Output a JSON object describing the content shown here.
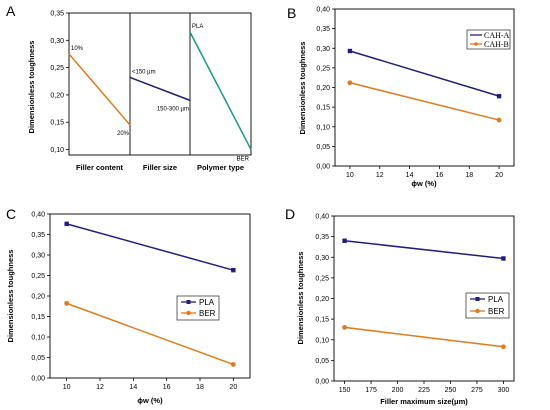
{
  "colors": {
    "blue": "#1f1f7a",
    "orange": "#e07a1f",
    "green": "#1a9a85",
    "axis": "#000000"
  },
  "chart_data": [
    {
      "panel": "A",
      "type": "line",
      "ylabel": "Dimensionless toughness",
      "ylim": [
        0.09,
        0.35
      ],
      "yticks": [
        "0,35",
        "0,30",
        "0,25",
        "0,20",
        "0,15",
        "0,10"
      ],
      "yticks_values": [
        0.35,
        0.3,
        0.25,
        0.2,
        0.15,
        0.1
      ],
      "groups": [
        {
          "xlabel": "Filler content",
          "color_key": "orange",
          "points": [
            {
              "label": "10%",
              "y": 0.275
            },
            {
              "label": "20%",
              "y": 0.145
            }
          ]
        },
        {
          "xlabel": "Filler size",
          "color_key": "blue",
          "points": [
            {
              "label": "<150 µm",
              "y": 0.232
            },
            {
              "label": "150-300 µm",
              "y": 0.19
            }
          ]
        },
        {
          "xlabel": "Polymer type",
          "color_key": "green",
          "points": [
            {
              "label": "PLA",
              "y": 0.315
            },
            {
              "label": "BER",
              "y": 0.1
            }
          ]
        }
      ]
    },
    {
      "panel": "B",
      "type": "line",
      "ylabel": "Dimensionless toughness",
      "xlabel": "ϕw (%)",
      "xlim": [
        9,
        21
      ],
      "xticks": [
        10,
        12,
        14,
        16,
        18,
        20
      ],
      "ylim": [
        0,
        0.4
      ],
      "yticks": [
        "0,00",
        "0,05",
        "0,10",
        "0,15",
        "0,20",
        "0,25",
        "0,30",
        "0,35",
        "0,40"
      ],
      "yticks_values": [
        0,
        0.05,
        0.1,
        0.15,
        0.2,
        0.25,
        0.3,
        0.35,
        0.4
      ],
      "legend_position": "top-right",
      "series": [
        {
          "name": "CAH-A",
          "color_key": "blue",
          "x": [
            10,
            20
          ],
          "y": [
            0.293,
            0.178
          ]
        },
        {
          "name": "CAH-B",
          "color_key": "orange",
          "x": [
            10,
            20
          ],
          "y": [
            0.212,
            0.117
          ]
        }
      ]
    },
    {
      "panel": "C",
      "type": "line",
      "ylabel": "Dimensionless toughness",
      "xlabel": "ϕw (%)",
      "xlim": [
        9,
        21
      ],
      "xticks": [
        10,
        12,
        14,
        16,
        18,
        20
      ],
      "ylim": [
        0,
        0.4
      ],
      "yticks": [
        "0,00",
        "0,05",
        "0,10",
        "0,15",
        "0,20",
        "0,25",
        "0,30",
        "0,35",
        "0,40"
      ],
      "yticks_values": [
        0,
        0.05,
        0.1,
        0.15,
        0.2,
        0.25,
        0.3,
        0.35,
        0.4
      ],
      "legend_position": "middle-right",
      "series": [
        {
          "name": "PLA",
          "color_key": "blue",
          "x": [
            10,
            20
          ],
          "y": [
            0.376,
            0.263
          ]
        },
        {
          "name": "BER",
          "color_key": "orange",
          "x": [
            10,
            20
          ],
          "y": [
            0.182,
            0.033
          ]
        }
      ]
    },
    {
      "panel": "D",
      "type": "line",
      "ylabel": "Dimensionless toughness",
      "xlabel": "Filler maximum size(μm)",
      "xlim": [
        140,
        310
      ],
      "xticks": [
        150,
        175,
        200,
        225,
        250,
        275,
        300
      ],
      "ylim": [
        0,
        0.4
      ],
      "yticks": [
        "0,00",
        "0,05",
        "0,10",
        "0,15",
        "0,20",
        "0,25",
        "0,30",
        "0,35",
        "0,40"
      ],
      "yticks_values": [
        0,
        0.05,
        0.1,
        0.15,
        0.2,
        0.25,
        0.3,
        0.35,
        0.4
      ],
      "legend_position": "middle-right",
      "series": [
        {
          "name": "PLA",
          "color_key": "blue",
          "x": [
            150,
            300
          ],
          "y": [
            0.34,
            0.297
          ]
        },
        {
          "name": "BER",
          "color_key": "orange",
          "x": [
            150,
            300
          ],
          "y": [
            0.13,
            0.083
          ]
        }
      ]
    }
  ]
}
